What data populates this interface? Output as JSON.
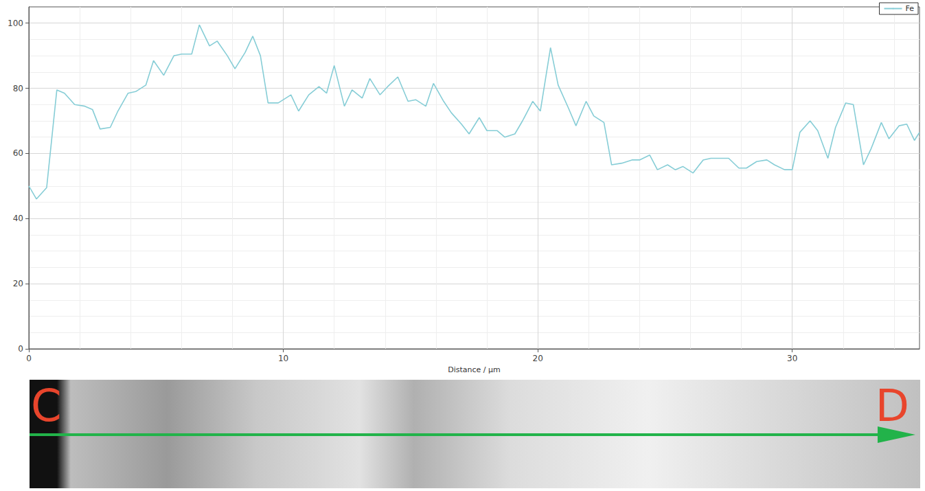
{
  "chart_data": {
    "type": "line",
    "x_label": "Distance / µm",
    "annotations": [
      "C",
      "D"
    ],
    "xlim": [
      0,
      35
    ],
    "xticks": [
      0,
      10,
      20,
      30
    ],
    "ylim": [
      0,
      105
    ],
    "yticks": [
      0,
      20,
      40,
      60,
      80,
      100
    ],
    "grid": true,
    "legend": "top-right",
    "x": [
      0,
      0.3,
      0.7,
      1.1,
      1.4,
      1.8,
      2.2,
      2.5,
      2.8,
      3.2,
      3.5,
      3.9,
      4.2,
      4.6,
      4.9,
      5.3,
      5.7,
      6.0,
      6.4,
      6.7,
      7.1,
      7.4,
      7.8,
      8.1,
      8.5,
      8.8,
      9.1,
      9.4,
      9.8,
      10.3,
      10.6,
      11.0,
      11.4,
      11.7,
      12.0,
      12.4,
      12.7,
      13.1,
      13.4,
      13.8,
      14.1,
      14.5,
      14.9,
      15.2,
      15.6,
      15.9,
      16.3,
      16.6,
      17.0,
      17.3,
      17.7,
      18.0,
      18.4,
      18.7,
      19.1,
      19.4,
      19.8,
      20.1,
      20.5,
      20.8,
      21.2,
      21.5,
      21.9,
      22.2,
      22.6,
      22.9,
      23.3,
      23.7,
      24.0,
      24.4,
      24.7,
      25.1,
      25.4,
      25.7,
      26.1,
      26.5,
      26.8,
      27.2,
      27.5,
      27.9,
      28.2,
      28.6,
      29.0,
      29.3,
      29.7,
      30.0,
      30.3,
      30.7,
      31.0,
      31.4,
      31.7,
      32.1,
      32.4,
      32.8,
      33.1,
      33.5,
      33.8,
      34.2,
      34.5,
      34.8,
      35.0
    ],
    "series": [
      {
        "name": "Fe",
        "color": "#86cdd6",
        "values": [
          50,
          46,
          49.5,
          79.5,
          78.5,
          75,
          74.5,
          73.5,
          67.5,
          68,
          73,
          78.5,
          79,
          81,
          88.5,
          84,
          90,
          90.5,
          90.5,
          99.5,
          93,
          94.5,
          90,
          86,
          91,
          96,
          90,
          75.5,
          75.5,
          78,
          73,
          78,
          80.5,
          78.5,
          87,
          74.5,
          79.5,
          77,
          83,
          78,
          80.5,
          83.5,
          76,
          76.5,
          74.5,
          81.5,
          76,
          72.5,
          69,
          66,
          71,
          67,
          67,
          65,
          66,
          70,
          76,
          73,
          92.5,
          81,
          74,
          68.5,
          76,
          71.5,
          69.5,
          56.5,
          57,
          58,
          58,
          59.5,
          55,
          56.5,
          55,
          56,
          54,
          58,
          58.5,
          58.5,
          58.5,
          55.5,
          55.5,
          57.5,
          58,
          56.5,
          55,
          55,
          66.5,
          70,
          67,
          58.5,
          68,
          75.5,
          75,
          56.5,
          61.5,
          69.5,
          64.5,
          68.5,
          69,
          64,
          66.5
        ]
      }
    ]
  }
}
